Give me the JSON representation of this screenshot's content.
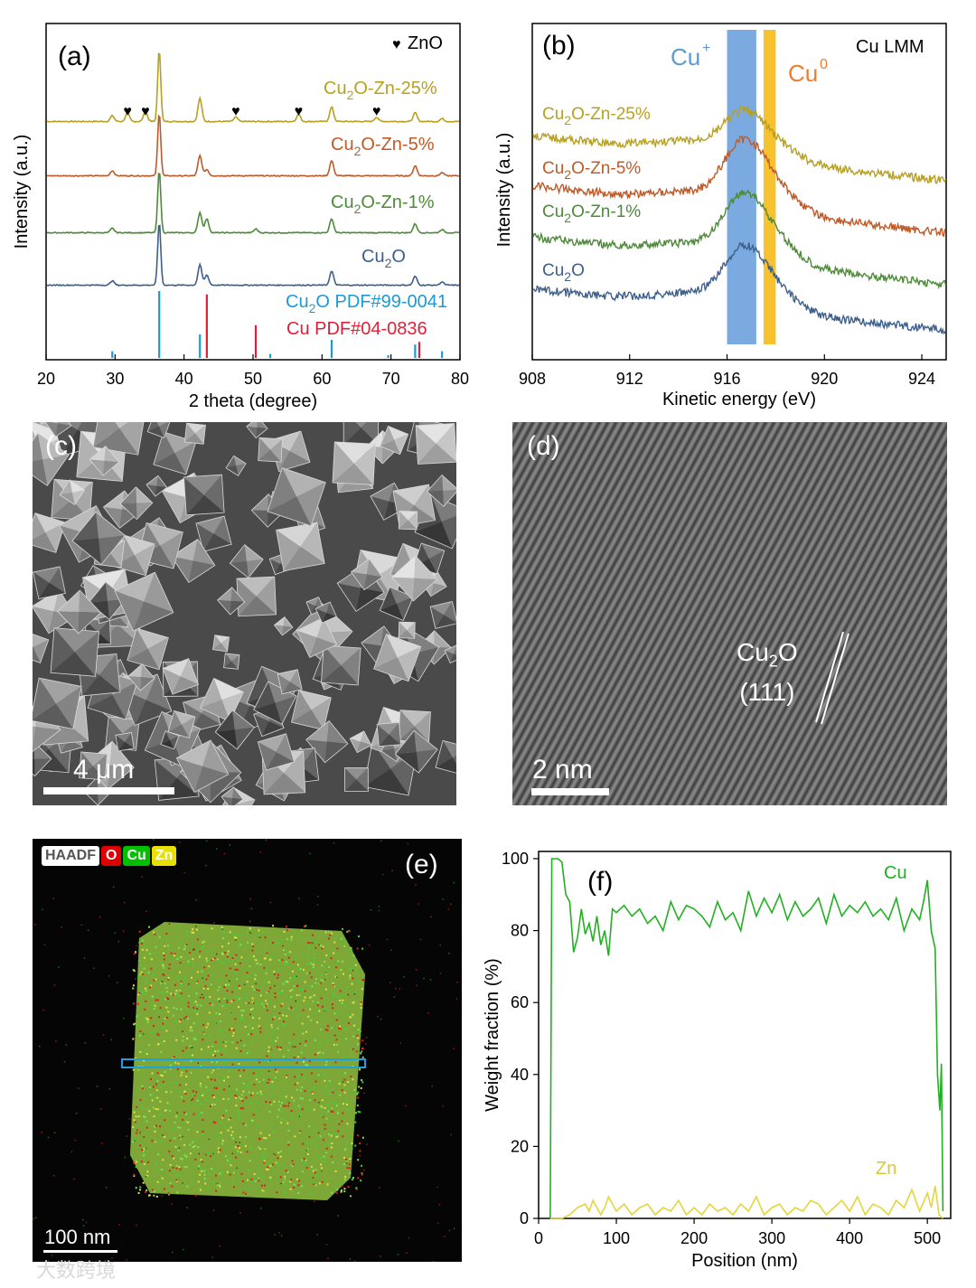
{
  "panel_a": {
    "label": "(a)",
    "legend_marker": "♥",
    "legend_text": "ZnO",
    "chart_data": {
      "type": "line",
      "xlabel": "2 theta (degree)",
      "ylabel": "Intensity (a.u.)",
      "xlim": [
        20,
        80
      ],
      "xticks": [
        "20",
        "30",
        "40",
        "50",
        "60",
        "70",
        "80"
      ],
      "series": [
        {
          "name": "Cu2O-Zn-25%",
          "color": "#b8a020",
          "label_main": "Cu",
          "label_sub": "2",
          "label_rest": "O-Zn-25%",
          "offset": 3,
          "peaks": [
            [
              29.6,
              0.08
            ],
            [
              31.8,
              0.12
            ],
            [
              34.4,
              0.14
            ],
            [
              36.4,
              1.0
            ],
            [
              42.3,
              0.32
            ],
            [
              47.5,
              0.06
            ],
            [
              56.6,
              0.1
            ],
            [
              61.4,
              0.2
            ],
            [
              67.9,
              0.06
            ],
            [
              73.5,
              0.12
            ],
            [
              77.4,
              0.04
            ]
          ]
        },
        {
          "name": "Cu2O-Zn-5%",
          "color": "#c05a28",
          "label_main": "Cu",
          "label_sub": "2",
          "label_rest": "O-Zn-5%",
          "offset": 2,
          "peaks": [
            [
              29.6,
              0.08
            ],
            [
              36.4,
              1.0
            ],
            [
              42.3,
              0.32
            ],
            [
              43.3,
              0.1
            ],
            [
              61.4,
              0.24
            ],
            [
              73.5,
              0.16
            ],
            [
              77.4,
              0.05
            ]
          ]
        },
        {
          "name": "Cu2O-Zn-1%",
          "color": "#4e8a3a",
          "label_main": "Cu",
          "label_sub": "2",
          "label_rest": "O-Zn-1%",
          "offset": 1,
          "peaks": [
            [
              29.6,
              0.07
            ],
            [
              36.4,
              1.0
            ],
            [
              42.3,
              0.32
            ],
            [
              43.3,
              0.22
            ],
            [
              50.4,
              0.06
            ],
            [
              61.4,
              0.22
            ],
            [
              73.5,
              0.14
            ],
            [
              77.4,
              0.05
            ]
          ]
        },
        {
          "name": "Cu2O",
          "color": "#3c5f8c",
          "label_main": "Cu",
          "label_sub": "2",
          "label_rest": "O",
          "offset": 0,
          "peaks": [
            [
              29.6,
              0.07
            ],
            [
              36.4,
              1.0
            ],
            [
              42.3,
              0.32
            ],
            [
              43.3,
              0.16
            ],
            [
              61.4,
              0.22
            ],
            [
              73.5,
              0.14
            ],
            [
              77.4,
              0.05
            ]
          ]
        }
      ],
      "znO_marker_positions": [
        31.8,
        34.4,
        47.5,
        56.6,
        67.9
      ],
      "references": [
        {
          "name": "Cu2O PDF#99-0041",
          "color": "#1a9ad6",
          "label_main": "Cu",
          "label_sub": "2",
          "label_rest": "O PDF#99-0041",
          "lines": [
            [
              29.6,
              0.1
            ],
            [
              36.4,
              1.0
            ],
            [
              42.3,
              0.35
            ],
            [
              52.5,
              0.06
            ],
            [
              61.4,
              0.27
            ],
            [
              69.6,
              0.04
            ],
            [
              73.5,
              0.2
            ],
            [
              77.4,
              0.1
            ]
          ]
        },
        {
          "name": "Cu PDF#04-0836",
          "color": "#e0203a",
          "label_main": "Cu PDF#04-0836",
          "label_sub": "",
          "label_rest": "",
          "lines": [
            [
              43.3,
              0.95
            ],
            [
              50.4,
              0.49
            ],
            [
              74.1,
              0.24
            ]
          ]
        }
      ]
    }
  },
  "panel_b": {
    "label": "(b)",
    "title": "Cu LMM",
    "band_cu_plus_label": "Cu",
    "band_cu_plus_sup": "+",
    "band_cu0_label": "Cu",
    "band_cu0_sup": "0",
    "band_cu_plus_color": "#7aaadf",
    "band_cu0_color": "#f7c230",
    "chart_data": {
      "type": "line",
      "xlabel": "Kinetic energy (eV)",
      "ylabel": "Intensity (a.u.)",
      "xlim": [
        908,
        925
      ],
      "xticks": [
        "908",
        "912",
        "916",
        "920",
        "924"
      ],
      "cu_plus_band": [
        916.0,
        917.2
      ],
      "cu0_band": [
        917.5,
        918.0
      ],
      "series": [
        {
          "name": "Cu2O-Zn-25%",
          "color": "#b8a020",
          "label_main": "Cu",
          "label_sub": "2",
          "label_rest": "O-Zn-25%",
          "offset": 3
        },
        {
          "name": "Cu2O-Zn-5%",
          "color": "#c05a28",
          "label_main": "Cu",
          "label_sub": "2",
          "label_rest": "O-Zn-5%",
          "offset": 2
        },
        {
          "name": "Cu2O-Zn-1%",
          "color": "#4e8a3a",
          "label_main": "Cu",
          "label_sub": "2",
          "label_rest": "O-Zn-1%",
          "offset": 1
        },
        {
          "name": "Cu2O",
          "color": "#3c5f8c",
          "label_main": "Cu",
          "label_sub": "2",
          "label_rest": "O",
          "offset": 0
        }
      ]
    }
  },
  "panel_c": {
    "label": "(c)",
    "scale": "4 μm"
  },
  "panel_d": {
    "label": "(d)",
    "scale": "2 nm",
    "annotation_main": "Cu",
    "annotation_sub": "2",
    "annotation_rest": "O",
    "annotation_plane": "(111)"
  },
  "panel_e": {
    "label": "(e)",
    "scale": "100 nm",
    "legend": [
      {
        "text": "HAADF",
        "color": "#ffffff",
        "text_color": "#555555"
      },
      {
        "text": "O",
        "color": "#e00000",
        "text_color": "#ffffff"
      },
      {
        "text": "Cu",
        "color": "#00c000",
        "text_color": "#ffffff"
      },
      {
        "text": "Zn",
        "color": "#e8e000",
        "text_color": "#ffffff"
      }
    ]
  },
  "panel_f": {
    "label": "(f)",
    "chart_data": {
      "type": "line",
      "xlabel": "Position (nm)",
      "ylabel": "Weight fraction (%)",
      "xlim": [
        0,
        530
      ],
      "ylim": [
        0,
        102
      ],
      "xticks": [
        "0",
        "100",
        "200",
        "300",
        "400",
        "500"
      ],
      "yticks": [
        "0",
        "20",
        "40",
        "60",
        "80",
        "100"
      ],
      "series": [
        {
          "name": "Cu",
          "color": "#22b022",
          "x": [
            15,
            17,
            20,
            25,
            30,
            35,
            40,
            45,
            50,
            55,
            60,
            65,
            70,
            75,
            80,
            85,
            90,
            95,
            100,
            110,
            120,
            130,
            140,
            150,
            160,
            170,
            180,
            190,
            200,
            210,
            220,
            230,
            240,
            250,
            260,
            270,
            280,
            290,
            300,
            310,
            320,
            330,
            340,
            350,
            360,
            370,
            380,
            390,
            400,
            410,
            420,
            430,
            440,
            450,
            460,
            470,
            480,
            490,
            495,
            500,
            505,
            510,
            513,
            516,
            518,
            520
          ],
          "y": [
            0,
            100,
            100,
            100,
            99,
            90,
            88,
            74,
            78,
            86,
            79,
            82,
            77,
            84,
            76,
            80,
            73,
            86,
            85,
            87,
            84,
            86,
            82,
            84,
            80,
            88,
            83,
            87,
            86,
            84,
            81,
            88,
            83,
            85,
            80,
            91,
            84,
            89,
            85,
            90,
            83,
            88,
            84,
            86,
            89,
            82,
            90,
            84,
            87,
            85,
            88,
            84,
            86,
            83,
            89,
            80,
            86,
            83,
            88,
            94,
            80,
            75,
            40,
            30,
            43,
            2
          ]
        },
        {
          "name": "Zn",
          "color": "#e3d63c",
          "x": [
            15,
            20,
            30,
            40,
            45,
            50,
            60,
            65,
            70,
            80,
            85,
            90,
            100,
            110,
            120,
            130,
            140,
            150,
            160,
            170,
            180,
            190,
            200,
            210,
            220,
            230,
            240,
            250,
            260,
            270,
            280,
            290,
            300,
            310,
            320,
            330,
            340,
            350,
            360,
            370,
            380,
            390,
            400,
            410,
            420,
            430,
            440,
            450,
            460,
            470,
            480,
            490,
            500,
            505,
            510,
            515,
            520
          ],
          "y": [
            0,
            0,
            0,
            1,
            2,
            3,
            4,
            2,
            5,
            1,
            3,
            6,
            2,
            4,
            1,
            3,
            4,
            1,
            3,
            2,
            5,
            1,
            3,
            1,
            4,
            2,
            3,
            1,
            4,
            2,
            6,
            1,
            3,
            4,
            1,
            3,
            2,
            5,
            4,
            1,
            3,
            5,
            2,
            6,
            1,
            4,
            3,
            1,
            5,
            3,
            8,
            2,
            7,
            3,
            9,
            1,
            0
          ]
        }
      ]
    }
  },
  "watermark": "大数跨境"
}
